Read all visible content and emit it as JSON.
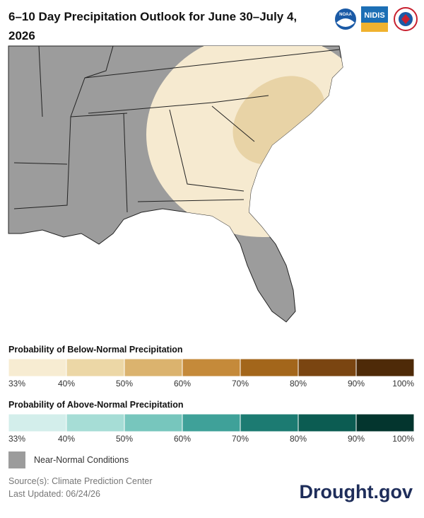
{
  "header": {
    "title": "6–10 Day Precipitation Outlook for June 30–July 4, 2026",
    "logos": [
      "NOAA",
      "NIDIS"
    ]
  },
  "legend": {
    "below": {
      "title": "Probability of Below-Normal Precipitation",
      "labels": [
        "33%",
        "40%",
        "50%",
        "60%",
        "70%",
        "80%",
        "90%",
        "100%"
      ]
    },
    "above": {
      "title": "Probability of Above-Normal Precipitation",
      "labels": [
        "33%",
        "40%",
        "50%",
        "60%",
        "70%",
        "80%",
        "90%",
        "100%"
      ]
    },
    "near_normal": "Near-Normal Conditions"
  },
  "footer": {
    "source": "Source(s): Climate Prediction Center",
    "updated": "Last Updated: 06/24/26",
    "brand": "Drought.gov"
  }
}
